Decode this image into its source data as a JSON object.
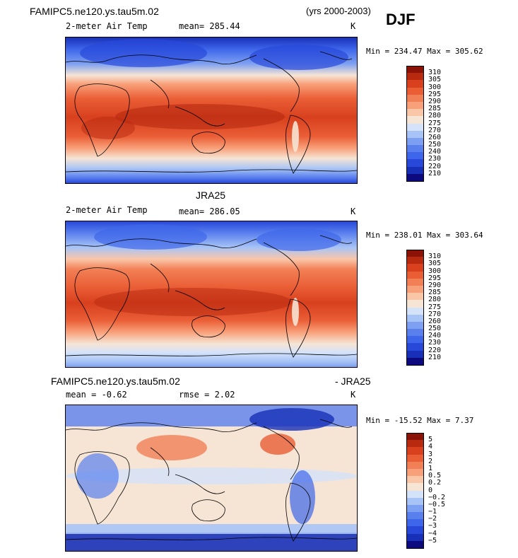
{
  "header": {
    "case_name": "FAMIPC5.ne120.ys.tau5m.02",
    "years": "(yrs 2000-2003)",
    "season": "DJF"
  },
  "panels": [
    {
      "id": "model",
      "variable": "2-meter Air Temp",
      "mean_text": "mean= 285.44",
      "units": "K",
      "minmax_text": "Min = 234.47 Max = 305.62"
    },
    {
      "id": "obs",
      "title": "JRA25",
      "variable": "2-meter Air Temp",
      "mean_text": "mean= 286.05",
      "units": "K",
      "minmax_text": "Min = 238.01 Max = 303.64"
    },
    {
      "id": "diff",
      "title_left": "FAMIPC5.ne120.ys.tau5m.02",
      "title_right": "- JRA25",
      "mean_text": "mean =  -0.62",
      "rmse_text": "rmse =   2.02",
      "units": "K",
      "minmax_text": "Min = -15.52 Max =   7.37"
    }
  ],
  "chart_data": [
    {
      "type": "heatmap",
      "title": "FAMIPC5.ne120.ys.tau5m.02 2-meter Air Temp DJF (yrs 2000-2003)",
      "field": "2-meter Air Temp",
      "units": "K",
      "mean": 285.44,
      "min": 234.47,
      "max": 305.62,
      "colorbar_levels": [
        210,
        220,
        230,
        240,
        250,
        260,
        270,
        275,
        280,
        285,
        290,
        295,
        300,
        305,
        310
      ],
      "colorbar_colors": [
        "#0c0a7e",
        "#1830b8",
        "#2848da",
        "#3e66ea",
        "#5a80ee",
        "#7ea0f2",
        "#a8c4f6",
        "#d4e2fa",
        "#f6e4d4",
        "#fac6a8",
        "#f8a07a",
        "#f28056",
        "#ea5e36",
        "#d8401e",
        "#b82a10",
        "#8a1206"
      ]
    },
    {
      "type": "heatmap",
      "title": "JRA25 2-meter Air Temp DJF",
      "field": "2-meter Air Temp",
      "units": "K",
      "mean": 286.05,
      "min": 238.01,
      "max": 303.64,
      "colorbar_levels": [
        210,
        220,
        230,
        240,
        250,
        260,
        270,
        275,
        280,
        285,
        290,
        295,
        300,
        305,
        310
      ],
      "colorbar_colors": [
        "#0c0a7e",
        "#1830b8",
        "#2848da",
        "#3e66ea",
        "#5a80ee",
        "#7ea0f2",
        "#a8c4f6",
        "#d4e2fa",
        "#f6e4d4",
        "#fac6a8",
        "#f8a07a",
        "#f28056",
        "#ea5e36",
        "#d8401e",
        "#b82a10",
        "#8a1206"
      ]
    },
    {
      "type": "heatmap",
      "title": "FAMIPC5.ne120.ys.tau5m.02 - JRA25",
      "field": "2-meter Air Temp difference",
      "units": "K",
      "mean": -0.62,
      "rmse": 2.02,
      "min": -15.52,
      "max": 7.37,
      "colorbar_levels": [
        "-5",
        "-4",
        "-3",
        "-2",
        "-1",
        "-0.5",
        "-0.2",
        "0",
        "0.2",
        "0.5",
        "1",
        "2",
        "3",
        "4",
        "5"
      ],
      "colorbar_colors": [
        "#0c0a7e",
        "#1830b8",
        "#2848da",
        "#3e66ea",
        "#5a80ee",
        "#7ea0f2",
        "#a8c4f6",
        "#d4e2fa",
        "#f6e4d4",
        "#fac6a8",
        "#f8a07a",
        "#f28056",
        "#ea5e36",
        "#d8401e",
        "#b82a10",
        "#8a1206"
      ]
    }
  ]
}
